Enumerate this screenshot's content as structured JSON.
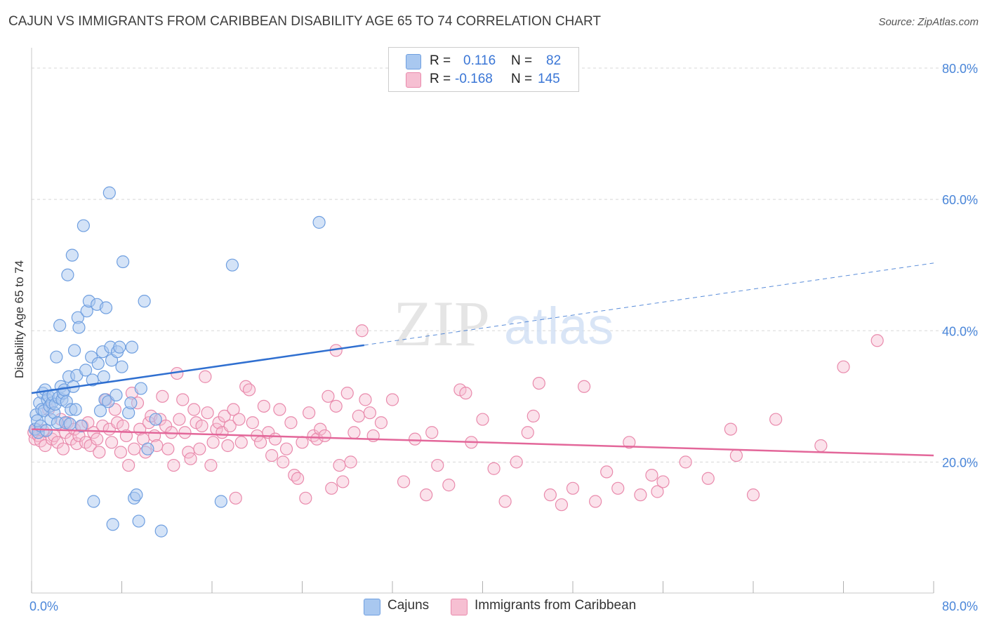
{
  "header": {
    "title": "CAJUN VS IMMIGRANTS FROM CARIBBEAN DISABILITY AGE 65 TO 74 CORRELATION CHART",
    "source": "Source: ZipAtlas.com"
  },
  "watermark": {
    "zip": "ZIP",
    "atlas": "atlas"
  },
  "legend": {
    "rows": [
      {
        "r_label": "R =",
        "r_value": "0.116",
        "n_label": "N =",
        "n_value": "82"
      },
      {
        "r_label": "R =",
        "r_value": "-0.168",
        "n_label": "N =",
        "n_value": "145"
      }
    ]
  },
  "colors": {
    "blue_fill": "#a9c8f0",
    "blue_stroke": "#6f9fe0",
    "blue_line": "#2f6fd0",
    "pink_fill": "#f6bfd2",
    "pink_stroke": "#e98aac",
    "pink_line": "#e3679a",
    "grid": "#d8d8d8",
    "axis_text": "#4a86d9"
  },
  "chart_data": {
    "type": "scatter",
    "title": "CAJUN VS IMMIGRANTS FROM CARIBBEAN DISABILITY AGE 65 TO 74 CORRELATION CHART",
    "xlabel": "",
    "ylabel": "Disability Age 65 to 74",
    "xlim": [
      0,
      80
    ],
    "ylim": [
      0,
      80
    ],
    "x_tick_labels": [
      "0.0%",
      "80.0%"
    ],
    "y_ticks": [
      20,
      40,
      60,
      80
    ],
    "y_tick_labels": [
      "20.0%",
      "40.0%",
      "60.0%",
      "80.0%"
    ],
    "grid": "horizontal dashed",
    "legend_position": "top-center",
    "series": [
      {
        "name": "Cajuns",
        "color": "#a9c8f0",
        "R": 0.116,
        "N": 82,
        "trend": {
          "x": [
            0,
            29.5
          ],
          "y": [
            30.5,
            37.8
          ],
          "dashed_extension": {
            "x": [
              29.5,
              80
            ],
            "y": [
              37.8,
              50.3
            ]
          }
        },
        "points": [
          [
            0.3,
            25.0
          ],
          [
            0.4,
            27.2
          ],
          [
            0.5,
            26.3
          ],
          [
            0.6,
            24.5
          ],
          [
            0.7,
            29.0
          ],
          [
            0.8,
            25.5
          ],
          [
            0.9,
            28.0
          ],
          [
            1.0,
            30.5
          ],
          [
            1.1,
            27.8
          ],
          [
            1.2,
            31.0
          ],
          [
            1.3,
            24.8
          ],
          [
            1.4,
            29.5
          ],
          [
            1.5,
            30.0
          ],
          [
            1.6,
            28.5
          ],
          [
            1.7,
            26.5
          ],
          [
            1.8,
            29.0
          ],
          [
            1.9,
            30.2
          ],
          [
            2.0,
            27.5
          ],
          [
            2.1,
            28.8
          ],
          [
            2.2,
            36.0
          ],
          [
            2.3,
            26.0
          ],
          [
            2.4,
            29.8
          ],
          [
            2.5,
            40.8
          ],
          [
            2.6,
            31.5
          ],
          [
            2.7,
            29.5
          ],
          [
            2.8,
            30.5
          ],
          [
            2.9,
            31.0
          ],
          [
            3.0,
            26.0
          ],
          [
            3.1,
            29.2
          ],
          [
            3.2,
            48.5
          ],
          [
            3.3,
            33.0
          ],
          [
            3.4,
            25.8
          ],
          [
            3.5,
            28.0
          ],
          [
            3.6,
            51.5
          ],
          [
            3.7,
            31.5
          ],
          [
            3.8,
            37.0
          ],
          [
            3.9,
            28.0
          ],
          [
            4.0,
            33.2
          ],
          [
            4.1,
            42.0
          ],
          [
            4.2,
            40.5
          ],
          [
            4.4,
            25.5
          ],
          [
            4.6,
            56.0
          ],
          [
            4.8,
            34.0
          ],
          [
            4.9,
            43.0
          ],
          [
            5.1,
            44.5
          ],
          [
            5.3,
            36.0
          ],
          [
            5.4,
            32.5
          ],
          [
            5.5,
            14.0
          ],
          [
            5.8,
            44.0
          ],
          [
            5.9,
            35.0
          ],
          [
            6.1,
            27.8
          ],
          [
            6.3,
            36.8
          ],
          [
            6.4,
            33.0
          ],
          [
            6.5,
            29.5
          ],
          [
            6.6,
            43.5
          ],
          [
            6.8,
            29.2
          ],
          [
            6.9,
            61.0
          ],
          [
            7.0,
            37.5
          ],
          [
            7.1,
            35.5
          ],
          [
            7.2,
            10.5
          ],
          [
            7.5,
            30.2
          ],
          [
            7.6,
            36.8
          ],
          [
            7.8,
            37.5
          ],
          [
            8.0,
            34.5
          ],
          [
            8.1,
            50.5
          ],
          [
            8.6,
            27.5
          ],
          [
            8.8,
            29.0
          ],
          [
            8.9,
            37.5
          ],
          [
            9.1,
            14.5
          ],
          [
            9.3,
            15.0
          ],
          [
            9.5,
            11.0
          ],
          [
            9.7,
            31.2
          ],
          [
            10.0,
            44.5
          ],
          [
            10.3,
            22.0
          ],
          [
            11.0,
            26.5
          ],
          [
            11.5,
            9.5
          ],
          [
            16.8,
            14.0
          ],
          [
            17.8,
            50.0
          ],
          [
            25.5,
            56.5
          ]
        ]
      },
      {
        "name": "Immigrants from Caribbean",
        "color": "#f6bfd2",
        "R": -0.168,
        "N": 145,
        "trend": {
          "x": [
            0,
            80
          ],
          "y": [
            25.0,
            21.0
          ]
        },
        "points": [
          [
            0.2,
            24.5
          ],
          [
            0.3,
            23.5
          ],
          [
            0.4,
            25.0
          ],
          [
            0.6,
            24.0
          ],
          [
            0.8,
            23.2
          ],
          [
            1.0,
            24.8
          ],
          [
            1.2,
            22.5
          ],
          [
            1.5,
            28.0
          ],
          [
            1.8,
            23.5
          ],
          [
            2.0,
            24.0
          ],
          [
            2.3,
            23.0
          ],
          [
            2.6,
            26.5
          ],
          [
            2.8,
            22.0
          ],
          [
            3.0,
            24.5
          ],
          [
            3.2,
            26.0
          ],
          [
            3.5,
            23.5
          ],
          [
            3.8,
            25.0
          ],
          [
            4.0,
            22.8
          ],
          [
            4.2,
            24.0
          ],
          [
            4.5,
            25.5
          ],
          [
            4.8,
            23.0
          ],
          [
            5.0,
            26.0
          ],
          [
            5.2,
            22.5
          ],
          [
            5.5,
            24.5
          ],
          [
            5.8,
            23.5
          ],
          [
            6.0,
            21.5
          ],
          [
            6.3,
            25.5
          ],
          [
            6.6,
            29.5
          ],
          [
            6.9,
            25.0
          ],
          [
            7.1,
            23.0
          ],
          [
            7.4,
            28.0
          ],
          [
            7.6,
            26.0
          ],
          [
            7.9,
            21.5
          ],
          [
            8.1,
            25.5
          ],
          [
            8.4,
            24.0
          ],
          [
            8.6,
            19.5
          ],
          [
            8.9,
            30.5
          ],
          [
            9.1,
            22.0
          ],
          [
            9.4,
            29.0
          ],
          [
            9.6,
            25.0
          ],
          [
            9.9,
            23.5
          ],
          [
            10.1,
            21.5
          ],
          [
            10.4,
            26.0
          ],
          [
            10.6,
            27.0
          ],
          [
            10.9,
            24.0
          ],
          [
            11.1,
            22.5
          ],
          [
            11.4,
            26.5
          ],
          [
            11.6,
            30.0
          ],
          [
            11.9,
            25.5
          ],
          [
            12.1,
            22.0
          ],
          [
            12.4,
            24.5
          ],
          [
            12.6,
            19.5
          ],
          [
            12.9,
            33.5
          ],
          [
            13.1,
            26.5
          ],
          [
            13.4,
            29.5
          ],
          [
            13.6,
            24.5
          ],
          [
            13.9,
            21.5
          ],
          [
            14.1,
            20.5
          ],
          [
            14.4,
            28.0
          ],
          [
            14.6,
            26.0
          ],
          [
            14.9,
            22.0
          ],
          [
            15.1,
            25.5
          ],
          [
            15.4,
            33.0
          ],
          [
            15.6,
            27.5
          ],
          [
            15.9,
            19.5
          ],
          [
            16.1,
            23.0
          ],
          [
            16.4,
            25.0
          ],
          [
            16.6,
            26.0
          ],
          [
            16.9,
            24.5
          ],
          [
            17.1,
            27.0
          ],
          [
            17.4,
            22.5
          ],
          [
            17.6,
            25.5
          ],
          [
            17.9,
            28.0
          ],
          [
            18.1,
            14.5
          ],
          [
            18.4,
            26.5
          ],
          [
            18.6,
            23.0
          ],
          [
            19.0,
            31.5
          ],
          [
            19.3,
            31.0
          ],
          [
            19.6,
            26.0
          ],
          [
            20.0,
            24.0
          ],
          [
            20.3,
            23.0
          ],
          [
            20.6,
            28.5
          ],
          [
            21.0,
            24.5
          ],
          [
            21.3,
            21.0
          ],
          [
            21.6,
            23.5
          ],
          [
            22.0,
            28.0
          ],
          [
            22.3,
            20.0
          ],
          [
            22.6,
            22.0
          ],
          [
            23.0,
            26.0
          ],
          [
            23.3,
            18.0
          ],
          [
            23.6,
            17.5
          ],
          [
            24.0,
            23.0
          ],
          [
            24.3,
            14.5
          ],
          [
            24.6,
            27.5
          ],
          [
            25.0,
            24.0
          ],
          [
            25.3,
            23.5
          ],
          [
            25.6,
            25.0
          ],
          [
            26.0,
            24.0
          ],
          [
            26.3,
            30.0
          ],
          [
            26.6,
            16.0
          ],
          [
            27.0,
            28.5
          ],
          [
            27.3,
            19.5
          ],
          [
            27.6,
            17.0
          ],
          [
            28.0,
            30.5
          ],
          [
            28.3,
            20.0
          ],
          [
            28.6,
            24.5
          ],
          [
            29.0,
            27.0
          ],
          [
            29.3,
            40.0
          ],
          [
            29.6,
            29.5
          ],
          [
            30.0,
            27.5
          ],
          [
            30.3,
            24.0
          ],
          [
            31.0,
            26.0
          ],
          [
            32.0,
            29.5
          ],
          [
            33.0,
            17.0
          ],
          [
            34.0,
            23.5
          ],
          [
            35.0,
            15.0
          ],
          [
            35.5,
            24.5
          ],
          [
            36.0,
            19.5
          ],
          [
            37.0,
            16.5
          ],
          [
            38.0,
            31.0
          ],
          [
            38.5,
            30.5
          ],
          [
            39.0,
            23.0
          ],
          [
            40.0,
            26.5
          ],
          [
            41.0,
            19.0
          ],
          [
            42.0,
            14.0
          ],
          [
            43.0,
            20.0
          ],
          [
            44.0,
            24.5
          ],
          [
            44.5,
            27.0
          ],
          [
            45.0,
            32.0
          ],
          [
            46.0,
            15.0
          ],
          [
            47.0,
            13.5
          ],
          [
            48.0,
            16.0
          ],
          [
            49.0,
            31.5
          ],
          [
            50.0,
            14.0
          ],
          [
            51.0,
            18.5
          ],
          [
            52.0,
            16.0
          ],
          [
            53.0,
            23.0
          ],
          [
            54.0,
            15.0
          ],
          [
            55.0,
            18.0
          ],
          [
            55.5,
            15.5
          ],
          [
            56.0,
            17.0
          ],
          [
            58.0,
            20.0
          ],
          [
            60.0,
            17.5
          ],
          [
            62.0,
            25.0
          ],
          [
            62.5,
            21.0
          ],
          [
            64.0,
            15.0
          ],
          [
            66.0,
            26.5
          ],
          [
            70.0,
            22.5
          ],
          [
            72.0,
            34.5
          ],
          [
            75.0,
            38.5
          ],
          [
            27.0,
            37.0
          ]
        ]
      }
    ]
  }
}
